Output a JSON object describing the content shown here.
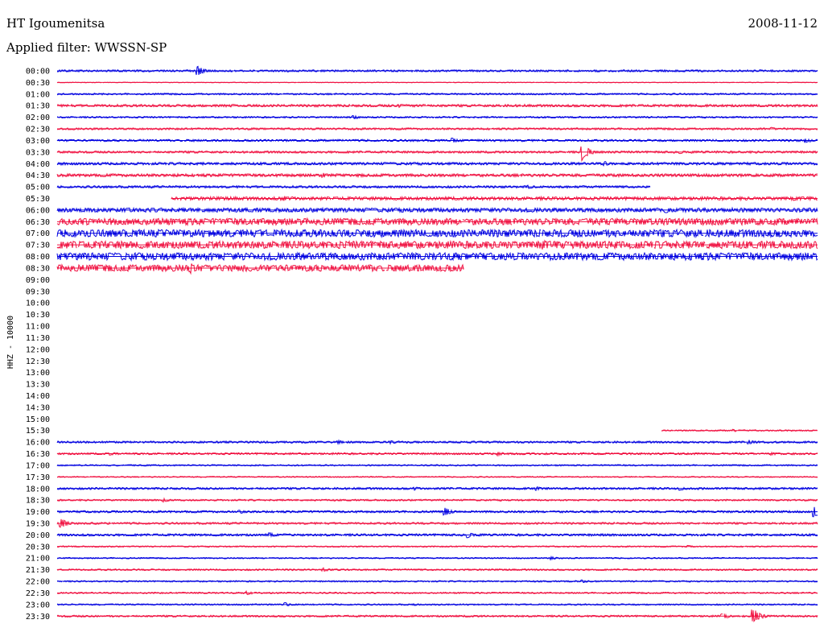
{
  "header": {
    "station": "HT Igoumenitsa",
    "date": "2008-11-12",
    "filter": "Applied filter: WWSSN-SP"
  },
  "chart_data": {
    "type": "line",
    "ylabel": "HHZ - 10000",
    "colors": [
      "#0000e0",
      "#f01040"
    ],
    "rows": [
      {
        "time": "00:00",
        "start": 0.0,
        "end": 1.0,
        "amp": 1.2,
        "events": [
          [
            0.185,
            6
          ]
        ]
      },
      {
        "time": "00:30",
        "start": 0.0,
        "end": 1.0,
        "amp": 0.4,
        "events": []
      },
      {
        "time": "01:00",
        "start": 0.0,
        "end": 1.0,
        "amp": 1.0,
        "events": []
      },
      {
        "time": "01:30",
        "start": 0.0,
        "end": 1.0,
        "amp": 1.5,
        "events": [
          [
            0.23,
            2
          ],
          [
            0.45,
            2.5
          ]
        ]
      },
      {
        "time": "02:00",
        "start": 0.0,
        "end": 1.0,
        "amp": 1.0,
        "events": [
          [
            0.39,
            2.5
          ]
        ]
      },
      {
        "time": "02:30",
        "start": 0.0,
        "end": 1.0,
        "amp": 1.2,
        "events": [
          [
            0.94,
            2
          ]
        ]
      },
      {
        "time": "03:00",
        "start": 0.0,
        "end": 1.0,
        "amp": 1.3,
        "events": [
          [
            0.52,
            3
          ],
          [
            0.985,
            3
          ]
        ]
      },
      {
        "time": "03:30",
        "start": 0.0,
        "end": 1.0,
        "amp": 1.3,
        "events": [
          [
            0.69,
            11
          ],
          [
            0.82,
            2
          ]
        ]
      },
      {
        "time": "04:00",
        "start": 0.0,
        "end": 1.0,
        "amp": 1.6,
        "events": [
          [
            0.72,
            3
          ]
        ]
      },
      {
        "time": "04:30",
        "start": 0.0,
        "end": 1.0,
        "amp": 1.8,
        "events": [
          [
            0.35,
            3
          ],
          [
            0.74,
            2.5
          ]
        ]
      },
      {
        "time": "05:00",
        "start": 0.0,
        "end": 0.78,
        "amp": 1.4,
        "events": [
          [
            0.62,
            2.5
          ]
        ]
      },
      {
        "time": "05:30",
        "start": 0.15,
        "end": 1.0,
        "amp": 2.0,
        "events": [
          [
            0.3,
            3
          ],
          [
            0.97,
            2.5
          ]
        ]
      },
      {
        "time": "06:00",
        "start": 0.0,
        "end": 1.0,
        "amp": 2.5,
        "events": [
          [
            0.8,
            4
          ]
        ]
      },
      {
        "time": "06:30",
        "start": 0.0,
        "end": 1.0,
        "amp": 4.0,
        "events": []
      },
      {
        "time": "07:00",
        "start": 0.0,
        "end": 1.0,
        "amp": 4.5,
        "events": []
      },
      {
        "time": "07:30",
        "start": 0.0,
        "end": 1.0,
        "amp": 4.5,
        "events": [
          [
            0.64,
            6
          ]
        ]
      },
      {
        "time": "08:00",
        "start": 0.0,
        "end": 1.0,
        "amp": 4.5,
        "events": []
      },
      {
        "time": "08:30",
        "start": 0.0,
        "end": 0.535,
        "amp": 4.0,
        "events": [
          [
            0.175,
            7
          ]
        ]
      },
      {
        "time": "09:00",
        "start": 0,
        "end": 0,
        "amp": 0,
        "events": []
      },
      {
        "time": "09:30",
        "start": 0,
        "end": 0,
        "amp": 0,
        "events": []
      },
      {
        "time": "10:00",
        "start": 0,
        "end": 0,
        "amp": 0,
        "events": []
      },
      {
        "time": "10:30",
        "start": 0,
        "end": 0,
        "amp": 0,
        "events": []
      },
      {
        "time": "11:00",
        "start": 0,
        "end": 0,
        "amp": 0,
        "events": []
      },
      {
        "time": "11:30",
        "start": 0,
        "end": 0,
        "amp": 0,
        "events": []
      },
      {
        "time": "12:00",
        "start": 0,
        "end": 0,
        "amp": 0,
        "events": []
      },
      {
        "time": "12:30",
        "start": 0,
        "end": 0,
        "amp": 0,
        "events": []
      },
      {
        "time": "13:00",
        "start": 0,
        "end": 0,
        "amp": 0,
        "events": []
      },
      {
        "time": "13:30",
        "start": 0,
        "end": 0,
        "amp": 0,
        "events": []
      },
      {
        "time": "14:00",
        "start": 0,
        "end": 0,
        "amp": 0,
        "events": []
      },
      {
        "time": "14:30",
        "start": 0,
        "end": 0,
        "amp": 0,
        "events": []
      },
      {
        "time": "15:00",
        "start": 0,
        "end": 0,
        "amp": 0,
        "events": []
      },
      {
        "time": "15:30",
        "start": 0.795,
        "end": 1.0,
        "amp": 0.8,
        "events": [
          [
            0.89,
            1.5
          ]
        ]
      },
      {
        "time": "16:00",
        "start": 0.0,
        "end": 1.0,
        "amp": 1.2,
        "events": [
          [
            0.37,
            2.5
          ],
          [
            0.44,
            2
          ],
          [
            0.91,
            3
          ]
        ]
      },
      {
        "time": "16:30",
        "start": 0.0,
        "end": 1.0,
        "amp": 1.2,
        "events": [
          [
            0.07,
            2
          ],
          [
            0.58,
            2.5
          ],
          [
            0.94,
            2
          ]
        ]
      },
      {
        "time": "17:00",
        "start": 0.0,
        "end": 1.0,
        "amp": 0.9,
        "events": []
      },
      {
        "time": "17:30",
        "start": 0.0,
        "end": 1.0,
        "amp": 0.7,
        "events": []
      },
      {
        "time": "18:00",
        "start": 0.0,
        "end": 1.0,
        "amp": 1.3,
        "events": [
          [
            0.47,
            2.5
          ],
          [
            0.63,
            2.5
          ],
          [
            0.82,
            2.5
          ]
        ]
      },
      {
        "time": "18:30",
        "start": 0.0,
        "end": 1.0,
        "amp": 1.0,
        "events": [
          [
            0.14,
            2.5
          ]
        ]
      },
      {
        "time": "19:00",
        "start": 0.0,
        "end": 1.0,
        "amp": 1.3,
        "events": [
          [
            0.24,
            2.5
          ],
          [
            0.51,
            5
          ],
          [
            0.995,
            9
          ]
        ]
      },
      {
        "time": "19:30",
        "start": 0.0,
        "end": 1.0,
        "amp": 1.2,
        "events": [
          [
            0.005,
            6
          ]
        ]
      },
      {
        "time": "20:00",
        "start": 0.0,
        "end": 1.0,
        "amp": 1.4,
        "events": [
          [
            0.28,
            3
          ],
          [
            0.54,
            4
          ]
        ]
      },
      {
        "time": "20:30",
        "start": 0.0,
        "end": 1.0,
        "amp": 0.8,
        "events": [
          [
            0.83,
            1.5
          ]
        ]
      },
      {
        "time": "21:00",
        "start": 0.0,
        "end": 1.0,
        "amp": 0.8,
        "events": [
          [
            0.65,
            2
          ]
        ]
      },
      {
        "time": "21:30",
        "start": 0.0,
        "end": 1.0,
        "amp": 1.0,
        "events": [
          [
            0.35,
            2.5
          ]
        ]
      },
      {
        "time": "22:00",
        "start": 0.0,
        "end": 1.0,
        "amp": 0.9,
        "events": [
          [
            0.69,
            2
          ]
        ]
      },
      {
        "time": "22:30",
        "start": 0.0,
        "end": 1.0,
        "amp": 0.9,
        "events": [
          [
            0.25,
            2.5
          ]
        ]
      },
      {
        "time": "23:00",
        "start": 0.0,
        "end": 1.0,
        "amp": 0.9,
        "events": [
          [
            0.3,
            2.5
          ],
          [
            0.47,
            1.5
          ]
        ]
      },
      {
        "time": "23:30",
        "start": 0.0,
        "end": 1.0,
        "amp": 1.1,
        "events": [
          [
            0.875,
            4
          ],
          [
            0.915,
            10
          ]
        ]
      }
    ]
  }
}
